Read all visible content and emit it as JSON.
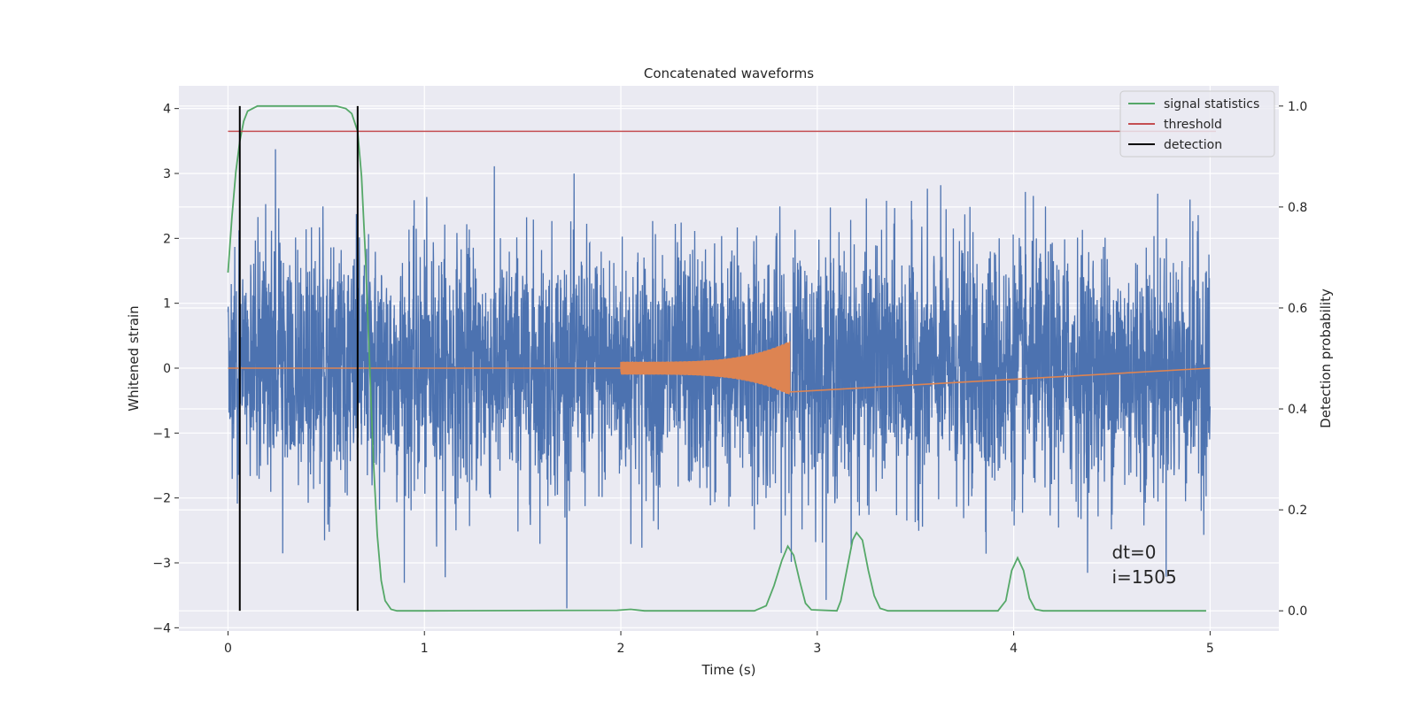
{
  "chart_data": {
    "type": "line",
    "title": "Concatenated waveforms",
    "xlabel": "Time (s)",
    "ylabel_left": "Whitened strain",
    "ylabel_right": "Detection probability",
    "xlim": [
      -0.25,
      5.35
    ],
    "ylim_left": [
      -4.05,
      4.35
    ],
    "ylim_right": [
      -0.04,
      1.04
    ],
    "xticks": [
      0,
      1,
      2,
      3,
      4,
      5
    ],
    "xtick_labels": [
      "0",
      "1",
      "2",
      "3",
      "4",
      "5"
    ],
    "yticks_left": [
      4,
      3,
      2,
      1,
      0,
      -1,
      -2,
      -3,
      -4
    ],
    "ytick_labels_left": [
      "4",
      "3",
      "2",
      "1",
      "0",
      "−1",
      "−2",
      "−3",
      "−4"
    ],
    "yticks_right": [
      1.0,
      0.8,
      0.6,
      0.4,
      0.2,
      0.0
    ],
    "ytick_labels_right": [
      "1.0",
      "0.8",
      "0.6",
      "0.4",
      "0.2",
      "0.0"
    ],
    "grid": true,
    "legend_position": "top-right",
    "legend": [
      {
        "label": "signal statistics",
        "color": "#55a868"
      },
      {
        "label": "threshold",
        "color": "#c44e52"
      },
      {
        "label": "detection",
        "color": "#000000"
      }
    ],
    "series": [
      {
        "name": "whitened strain (noise)",
        "axis": "left",
        "color": "#4c72b0",
        "x_range": [
          0,
          5
        ],
        "amplitude_range": [
          -3.7,
          3.4
        ]
      },
      {
        "name": "injected waveform",
        "axis": "left",
        "color": "#dd8452",
        "x_range": [
          2.0,
          2.86
        ],
        "amplitude_start": 0.1,
        "amplitude_peak": 0.42,
        "baseline_range": [
          0,
          5
        ]
      },
      {
        "name": "signal statistics",
        "axis": "right",
        "color": "#55a868",
        "points": [
          [
            0.0,
            0.67
          ],
          [
            0.02,
            0.78
          ],
          [
            0.04,
            0.87
          ],
          [
            0.06,
            0.93
          ],
          [
            0.08,
            0.97
          ],
          [
            0.1,
            0.99
          ],
          [
            0.15,
            1.0
          ],
          [
            0.55,
            1.0
          ],
          [
            0.6,
            0.995
          ],
          [
            0.63,
            0.985
          ],
          [
            0.66,
            0.95
          ],
          [
            0.68,
            0.86
          ],
          [
            0.7,
            0.7
          ],
          [
            0.72,
            0.5
          ],
          [
            0.74,
            0.3
          ],
          [
            0.76,
            0.15
          ],
          [
            0.78,
            0.06
          ],
          [
            0.8,
            0.02
          ],
          [
            0.83,
            0.003
          ],
          [
            0.86,
            0.0
          ],
          [
            1.0,
            0.0
          ],
          [
            1.98,
            0.001
          ],
          [
            2.05,
            0.003
          ],
          [
            2.12,
            0.0
          ],
          [
            2.68,
            0.0
          ],
          [
            2.74,
            0.01
          ],
          [
            2.78,
            0.05
          ],
          [
            2.82,
            0.1
          ],
          [
            2.85,
            0.128
          ],
          [
            2.88,
            0.11
          ],
          [
            2.91,
            0.06
          ],
          [
            2.94,
            0.015
          ],
          [
            2.97,
            0.002
          ],
          [
            3.1,
            0.0
          ],
          [
            3.12,
            0.02
          ],
          [
            3.15,
            0.08
          ],
          [
            3.18,
            0.14
          ],
          [
            3.2,
            0.155
          ],
          [
            3.23,
            0.14
          ],
          [
            3.26,
            0.08
          ],
          [
            3.29,
            0.03
          ],
          [
            3.32,
            0.005
          ],
          [
            3.36,
            0.0
          ],
          [
            3.92,
            0.0
          ],
          [
            3.96,
            0.02
          ],
          [
            3.99,
            0.08
          ],
          [
            4.02,
            0.105
          ],
          [
            4.05,
            0.08
          ],
          [
            4.08,
            0.025
          ],
          [
            4.11,
            0.003
          ],
          [
            4.15,
            0.0
          ],
          [
            4.98,
            0.0
          ]
        ]
      },
      {
        "name": "threshold",
        "axis": "right",
        "color": "#c44e52",
        "x_range": [
          0,
          5.03
        ],
        "value": 0.95
      }
    ],
    "detections": [
      0.06,
      0.66
    ],
    "detection_span_right": [
      0.0,
      1.0
    ],
    "annotation": [
      "dt=0",
      "i=1505"
    ],
    "annotation_position": {
      "x": 4.5,
      "y": -3.0
    }
  }
}
